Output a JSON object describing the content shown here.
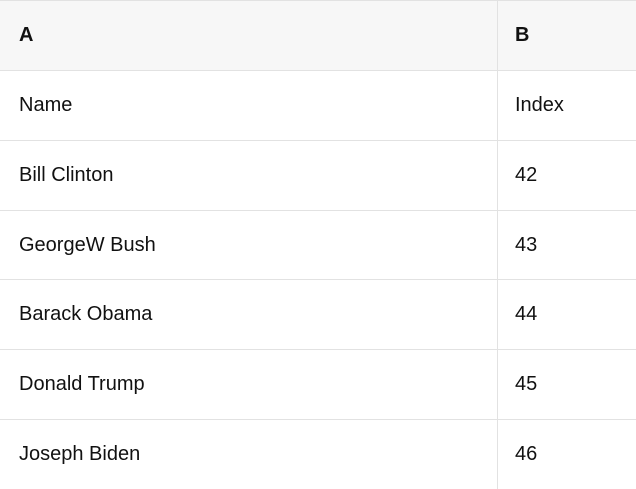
{
  "table": {
    "columns": [
      {
        "letter": "A"
      },
      {
        "letter": "B"
      }
    ],
    "rows": [
      {
        "a": "Name",
        "b": "Index"
      },
      {
        "a": "Bill Clinton",
        "b": "42"
      },
      {
        "a": "GeorgeW Bush",
        "b": "43"
      },
      {
        "a": "Barack Obama",
        "b": "44"
      },
      {
        "a": "Donald Trump",
        "b": "45"
      },
      {
        "a": "Joseph Biden",
        "b": "46"
      }
    ],
    "colors": {
      "header_bg": "#f7f7f7",
      "body_bg": "#ffffff",
      "border": "#e2e2e2",
      "text": "#111111"
    }
  }
}
